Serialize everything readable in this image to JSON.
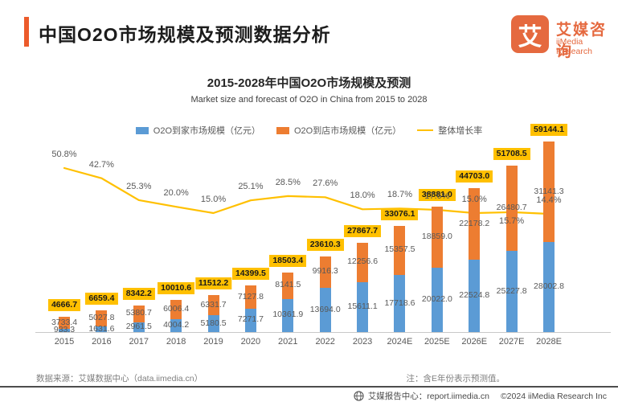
{
  "header": {
    "title": "中国O2O市场规模及预测数据分析",
    "logo": {
      "glyph": "艾",
      "name_cn": "艾媒咨询",
      "name_en": "iiMedia Research"
    }
  },
  "chart": {
    "title": "2015-2028年中国O2O市场规模及预测",
    "subtitle": "Market size and forecast of O2O in China from 2015 to 2028"
  },
  "chart_data": {
    "type": "bar",
    "stacked": true,
    "grid": false,
    "legend_position": "top",
    "categories": [
      "2015",
      "2016",
      "2017",
      "2018",
      "2019",
      "2020",
      "2021",
      "2022",
      "2023",
      "2024E",
      "2025E",
      "2026E",
      "2027E",
      "2028E"
    ],
    "series": [
      {
        "name": "O2O到家市场规模（亿元）",
        "color": "#5B9BD5",
        "values": [
          "933.3",
          "1631.6",
          "2961.5",
          "4004.2",
          "5180.5",
          "7271.7",
          "10361.9",
          "13694.0",
          "15611.1",
          "17718.6",
          "20022.0",
          "22524.8",
          "25227.8",
          "28002.8"
        ]
      },
      {
        "name": "O2O到店市场规模（亿元）",
        "color": "#ED7D31",
        "values": [
          "3733.4",
          "5027.8",
          "5380.7",
          "6006.4",
          "6331.7",
          "7127.8",
          "8141.5",
          "9916.3",
          "12256.6",
          "15357.5",
          "18859.0",
          "22178.2",
          "26480.7",
          "31141.3"
        ]
      }
    ],
    "totals": [
      "4666.7",
      "6659.4",
      "8342.2",
      "10010.6",
      "11512.2",
      "14399.5",
      "18503.4",
      "23610.3",
      "27867.7",
      "33076.1",
      "38881.0",
      "44703.0",
      "51708.5",
      "59144.1"
    ],
    "total_label_bg": "#FFC000",
    "line_series": {
      "name": "整体增长率",
      "color": "#FFC000",
      "values_pct": [
        50.8,
        42.7,
        25.3,
        20.0,
        15.0,
        25.1,
        28.5,
        27.6,
        18.0,
        18.7,
        17.6,
        15.0,
        15.7,
        14.4
      ],
      "labels": [
        "50.8%",
        "42.7%",
        "25.3%",
        "20.0%",
        "15.0%",
        "25.1%",
        "28.5%",
        "27.6%",
        "18.0%",
        "18.7%",
        "17.6%",
        "15.0%",
        "15.7%",
        "14.4%"
      ],
      "label_below_indexes": [
        12
      ]
    }
  },
  "footer": {
    "source": "数据来源：艾媒数据中心（data.iimedia.cn）",
    "note": "注：含E年份表示预测值。",
    "report_center": "艾媒报告中心：report.iimedia.cn",
    "copyright": "©2024  iiMedia Research Inc"
  }
}
